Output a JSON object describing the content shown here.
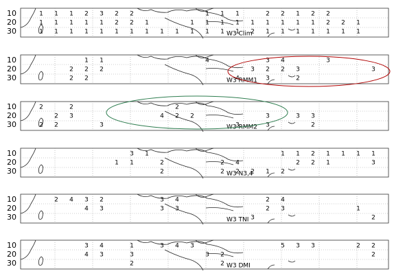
{
  "y_labels": [
    "10",
    "20",
    "30"
  ],
  "panels": [
    {
      "label": "W3 Clim",
      "rows": [
        [
          null,
          1,
          1,
          1,
          2,
          3,
          2,
          2,
          null,
          null,
          null,
          null,
          1,
          1,
          1,
          null,
          2,
          2,
          1,
          2,
          2,
          null,
          null,
          null
        ],
        [
          null,
          1,
          1,
          1,
          1,
          1,
          2,
          2,
          1,
          null,
          null,
          1,
          1,
          1,
          1,
          1,
          1,
          1,
          1,
          1,
          2,
          2,
          1,
          null
        ],
        [
          null,
          1,
          1,
          1,
          1,
          1,
          1,
          1,
          1,
          1,
          1,
          1,
          1,
          1,
          1,
          2,
          1,
          1,
          1,
          1,
          1,
          1,
          1,
          null
        ]
      ]
    },
    {
      "label": "W3 RMM1",
      "rows": [
        [
          null,
          null,
          null,
          null,
          1,
          1,
          null,
          null,
          null,
          null,
          null,
          null,
          4,
          null,
          null,
          null,
          3,
          4,
          null,
          null,
          3,
          null,
          null,
          null
        ],
        [
          null,
          null,
          null,
          2,
          2,
          2,
          null,
          null,
          null,
          null,
          null,
          null,
          null,
          null,
          null,
          3,
          2,
          2,
          3,
          null,
          null,
          null,
          null,
          3
        ],
        [
          null,
          null,
          null,
          2,
          2,
          null,
          null,
          null,
          null,
          null,
          null,
          null,
          null,
          null,
          4,
          null,
          3,
          null,
          2,
          null,
          null,
          null,
          null,
          null
        ]
      ]
    },
    {
      "label": "W3 RMM2",
      "rows": [
        [
          null,
          2,
          null,
          2,
          null,
          null,
          null,
          null,
          null,
          null,
          2,
          null,
          null,
          null,
          null,
          null,
          null,
          null,
          null,
          null,
          null,
          null,
          null,
          null
        ],
        [
          null,
          null,
          2,
          3,
          null,
          null,
          null,
          null,
          null,
          4,
          2,
          2,
          null,
          null,
          null,
          null,
          3,
          null,
          3,
          3,
          null,
          null,
          null,
          null
        ],
        [
          null,
          2,
          2,
          null,
          null,
          3,
          null,
          null,
          null,
          null,
          null,
          null,
          null,
          null,
          3,
          null,
          3,
          null,
          null,
          2,
          null,
          null,
          null,
          null
        ]
      ]
    },
    {
      "label": "W3 N3,4",
      "rows": [
        [
          null,
          null,
          null,
          null,
          null,
          null,
          null,
          3,
          1,
          null,
          null,
          null,
          null,
          null,
          null,
          null,
          null,
          1,
          1,
          2,
          1,
          1,
          1,
          1
        ],
        [
          null,
          null,
          null,
          null,
          null,
          null,
          1,
          1,
          null,
          2,
          null,
          null,
          null,
          2,
          4,
          null,
          null,
          null,
          2,
          2,
          1,
          null,
          null,
          3
        ],
        [
          null,
          null,
          null,
          null,
          null,
          null,
          null,
          null,
          null,
          2,
          null,
          null,
          null,
          2,
          2,
          2,
          1,
          2,
          null,
          null,
          null,
          null,
          null,
          null
        ]
      ]
    },
    {
      "label": "W3 TNI",
      "rows": [
        [
          null,
          null,
          2,
          4,
          3,
          2,
          null,
          null,
          null,
          3,
          4,
          null,
          null,
          null,
          null,
          null,
          2,
          4,
          null,
          null,
          null,
          null,
          null,
          null
        ],
        [
          null,
          null,
          null,
          null,
          4,
          3,
          null,
          null,
          null,
          3,
          3,
          null,
          null,
          null,
          null,
          null,
          2,
          3,
          null,
          null,
          null,
          null,
          1,
          null
        ],
        [
          null,
          null,
          null,
          null,
          null,
          null,
          null,
          null,
          null,
          null,
          null,
          null,
          null,
          null,
          null,
          3,
          null,
          null,
          null,
          null,
          null,
          null,
          null,
          2
        ]
      ]
    },
    {
      "label": "W3 DMI",
      "rows": [
        [
          null,
          null,
          null,
          null,
          3,
          4,
          null,
          1,
          null,
          3,
          4,
          3,
          null,
          null,
          null,
          null,
          null,
          5,
          3,
          3,
          null,
          null,
          2,
          2
        ],
        [
          null,
          null,
          null,
          null,
          4,
          3,
          null,
          3,
          null,
          null,
          null,
          null,
          3,
          2,
          null,
          null,
          null,
          null,
          null,
          null,
          null,
          null,
          null,
          2
        ],
        [
          null,
          null,
          null,
          null,
          null,
          null,
          null,
          2,
          null,
          null,
          null,
          null,
          null,
          2,
          null,
          null,
          null,
          null,
          null,
          null,
          null,
          null,
          null,
          null
        ]
      ]
    }
  ]
}
